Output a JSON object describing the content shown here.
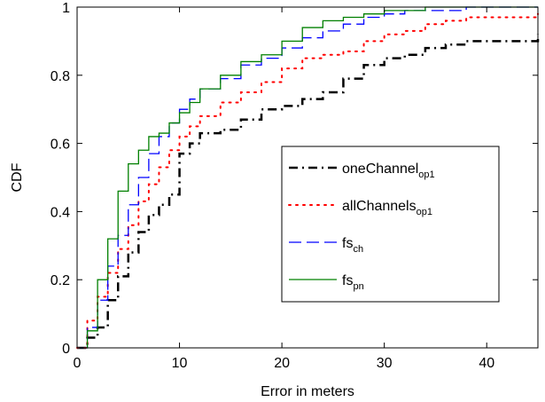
{
  "chart_data": {
    "type": "line",
    "title": "",
    "xlabel": "Error in meters",
    "ylabel": "CDF",
    "xlim": [
      0,
      45
    ],
    "ylim": [
      0,
      1
    ],
    "xticks": [
      0,
      10,
      20,
      30,
      40
    ],
    "yticks": [
      0,
      0.2,
      0.4,
      0.6,
      0.8,
      1
    ],
    "xtick_labels": [
      "0",
      "10",
      "20",
      "30",
      "40"
    ],
    "ytick_labels": [
      "0",
      "0.2",
      "0.4",
      "0.6",
      "0.8",
      "1"
    ],
    "grid": false,
    "legend_position": "center-right",
    "series": [
      {
        "name": "oneChannel",
        "sub": "op1",
        "color": "#000000",
        "style": "dashdot",
        "x": [
          0,
          1,
          2,
          3,
          4,
          5,
          6,
          7,
          8,
          9,
          10,
          11,
          12,
          14,
          16,
          18,
          20,
          22,
          24,
          26,
          28,
          30,
          32,
          34,
          36,
          38,
          40,
          45
        ],
        "y": [
          0,
          0.03,
          0.06,
          0.14,
          0.21,
          0.28,
          0.34,
          0.39,
          0.42,
          0.45,
          0.57,
          0.6,
          0.63,
          0.64,
          0.67,
          0.7,
          0.71,
          0.73,
          0.75,
          0.79,
          0.83,
          0.85,
          0.86,
          0.88,
          0.89,
          0.9,
          0.9,
          0.92
        ]
      },
      {
        "name": "allChannels",
        "sub": "op1",
        "color": "#ff0000",
        "style": "dotted",
        "x": [
          0,
          1,
          2,
          3,
          4,
          5,
          6,
          7,
          8,
          9,
          10,
          11,
          12,
          14,
          16,
          18,
          20,
          22,
          24,
          26,
          28,
          30,
          32,
          34,
          36,
          38,
          40,
          45
        ],
        "y": [
          0,
          0.08,
          0.15,
          0.22,
          0.29,
          0.36,
          0.43,
          0.48,
          0.53,
          0.58,
          0.62,
          0.65,
          0.68,
          0.72,
          0.75,
          0.78,
          0.82,
          0.85,
          0.86,
          0.87,
          0.9,
          0.92,
          0.93,
          0.95,
          0.96,
          0.97,
          0.97,
          0.98
        ]
      },
      {
        "name": "fs",
        "sub": "ch",
        "color": "#0000ff",
        "style": "dashed",
        "x": [
          0,
          1,
          2,
          3,
          4,
          5,
          6,
          7,
          8,
          9,
          10,
          11,
          12,
          14,
          16,
          18,
          20,
          22,
          24,
          26,
          28,
          30,
          32,
          34,
          36,
          38,
          40,
          45
        ],
        "y": [
          0,
          0.06,
          0.14,
          0.24,
          0.33,
          0.42,
          0.5,
          0.57,
          0.62,
          0.66,
          0.7,
          0.73,
          0.76,
          0.79,
          0.83,
          0.85,
          0.88,
          0.91,
          0.93,
          0.95,
          0.97,
          0.98,
          0.99,
          0.99,
          0.99,
          1,
          1,
          1
        ]
      },
      {
        "name": "fs",
        "sub": "pn",
        "color": "#008000",
        "style": "solid",
        "x": [
          0,
          1,
          2,
          3,
          4,
          5,
          6,
          7,
          8,
          9,
          10,
          11,
          12,
          14,
          16,
          18,
          20,
          22,
          24,
          26,
          28,
          30,
          32,
          34,
          36,
          38,
          40,
          45
        ],
        "y": [
          0,
          0.05,
          0.2,
          0.32,
          0.46,
          0.54,
          0.58,
          0.62,
          0.63,
          0.66,
          0.69,
          0.72,
          0.76,
          0.8,
          0.84,
          0.86,
          0.9,
          0.94,
          0.96,
          0.97,
          0.98,
          0.99,
          0.99,
          1,
          1,
          1,
          1,
          1
        ]
      }
    ]
  }
}
